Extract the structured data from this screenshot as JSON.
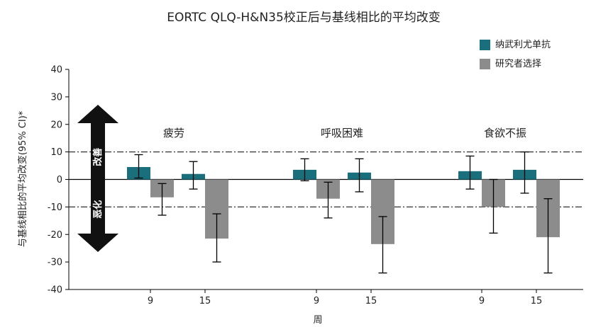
{
  "chart_data": {
    "type": "bar",
    "title": "EORTC QLQ-H&N35校正后与基线相比的平均改变",
    "xlabel": "周",
    "ylabel": "与基线相比的平均改变(95% CI)*",
    "ylim": [
      -40,
      40
    ],
    "yticks": [
      40,
      30,
      20,
      10,
      0,
      -10,
      -20,
      -30,
      -40
    ],
    "threshold_lines": [
      10,
      -10
    ],
    "direction_labels": {
      "up": "改善",
      "down": "恶化"
    },
    "legend_position": "top-right",
    "series": [
      {
        "name": "纳武利尤单抗",
        "color": "#1a6f7d"
      },
      {
        "name": "研究者选择",
        "color": "#8c8c8c"
      }
    ],
    "groups": [
      {
        "label": "疲劳",
        "weeks": [
          "9",
          "15"
        ],
        "bars": [
          {
            "week": "9",
            "series": 0,
            "value": 4.5,
            "ci": [
              0.5,
              9
            ]
          },
          {
            "week": "9",
            "series": 1,
            "value": -6.5,
            "ci": [
              -13,
              -1.5
            ]
          },
          {
            "week": "15",
            "series": 0,
            "value": 2,
            "ci": [
              -3.5,
              6.5
            ]
          },
          {
            "week": "15",
            "series": 1,
            "value": -21.5,
            "ci": [
              -30,
              -12.5
            ]
          }
        ]
      },
      {
        "label": "呼吸困难",
        "weeks": [
          "9",
          "15"
        ],
        "bars": [
          {
            "week": "9",
            "series": 0,
            "value": 3.5,
            "ci": [
              -0.5,
              7.5
            ]
          },
          {
            "week": "9",
            "series": 1,
            "value": -7,
            "ci": [
              -14,
              -1
            ]
          },
          {
            "week": "15",
            "series": 0,
            "value": 2.5,
            "ci": [
              -4.5,
              7.5
            ]
          },
          {
            "week": "15",
            "series": 1,
            "value": -23.5,
            "ci": [
              -34,
              -13.5
            ]
          }
        ]
      },
      {
        "label": "食欲不振",
        "weeks": [
          "9",
          "15"
        ],
        "bars": [
          {
            "week": "9",
            "series": 0,
            "value": 3,
            "ci": [
              -3.5,
              8.5
            ]
          },
          {
            "week": "9",
            "series": 1,
            "value": -10,
            "ci": [
              -19.5,
              0
            ]
          },
          {
            "week": "15",
            "series": 0,
            "value": 3.5,
            "ci": [
              -5,
              10
            ]
          },
          {
            "week": "15",
            "series": 1,
            "value": -21,
            "ci": [
              -34,
              -7
            ]
          }
        ]
      }
    ]
  }
}
